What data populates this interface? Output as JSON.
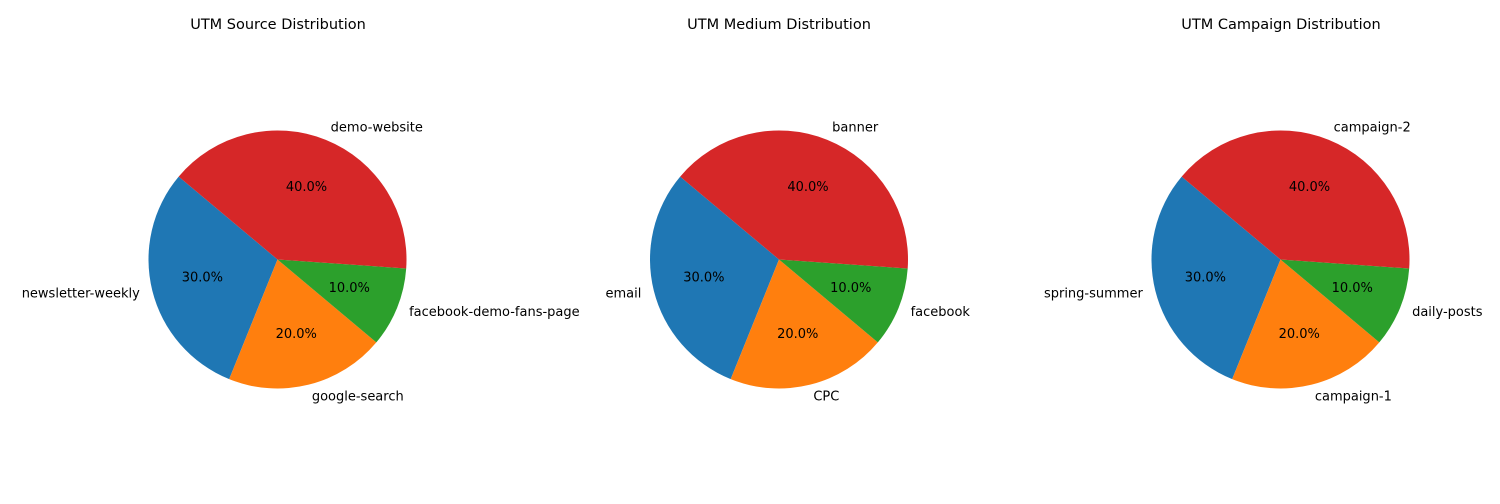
{
  "chart_data": [
    {
      "type": "pie",
      "title": "UTM Source Distribution",
      "labels": [
        "newsletter-weekly",
        "google-search",
        "facebook-demo-fans-page",
        "demo-website"
      ],
      "values": [
        30,
        20,
        10,
        40
      ],
      "percent_labels": [
        "30.0%",
        "20.0%",
        "10.0%",
        "40.0%"
      ],
      "colors": [
        "#1f77b4",
        "#ff7f0e",
        "#2ca02c",
        "#d62728"
      ],
      "start_angle": 140,
      "direction": "counterclockwise"
    },
    {
      "type": "pie",
      "title": "UTM Medium Distribution",
      "labels": [
        "email",
        "CPC",
        "facebook",
        "banner"
      ],
      "values": [
        30,
        20,
        10,
        40
      ],
      "percent_labels": [
        "30.0%",
        "20.0%",
        "10.0%",
        "40.0%"
      ],
      "colors": [
        "#1f77b4",
        "#ff7f0e",
        "#2ca02c",
        "#d62728"
      ],
      "start_angle": 140,
      "direction": "counterclockwise"
    },
    {
      "type": "pie",
      "title": "UTM Campaign Distribution",
      "labels": [
        "spring-summer",
        "campaign-1",
        "daily-posts",
        "campaign-2"
      ],
      "values": [
        30,
        20,
        10,
        40
      ],
      "percent_labels": [
        "30.0%",
        "20.0%",
        "10.0%",
        "40.0%"
      ],
      "colors": [
        "#1f77b4",
        "#ff7f0e",
        "#2ca02c",
        "#d62728"
      ],
      "start_angle": 140,
      "direction": "counterclockwise"
    }
  ]
}
